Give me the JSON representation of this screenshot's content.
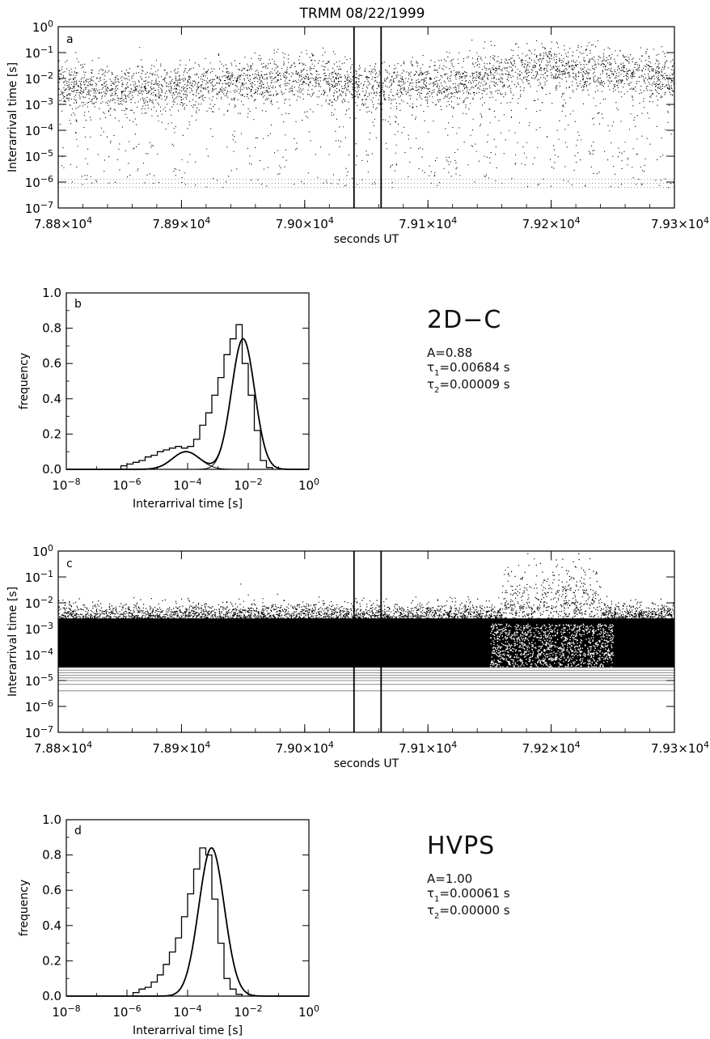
{
  "figure": {
    "title": "TRMM 08/22/1999",
    "panel_b_text": {
      "instrument": "2D−C",
      "A": "A=0.88",
      "tau1_sym": "τ",
      "tau1_sub": "1",
      "tau1_val": "=0.00684 s",
      "tau2_sym": "τ",
      "tau2_sub": "2",
      "tau2_val": "=0.00009 s"
    },
    "panel_d_text": {
      "instrument": "HVPS",
      "A": "A=1.00",
      "tau1_sym": "τ",
      "tau1_sub": "1",
      "tau1_val": "=0.00061 s",
      "tau2_sym": "τ",
      "tau2_sub": "2",
      "tau2_val": "=0.00000 s"
    }
  },
  "chart_data": [
    {
      "panel": "a",
      "type": "scatter",
      "title": "TRMM 08/22/1999",
      "xlabel": "seconds UT",
      "ylabel": "Interarrival time [s]",
      "xlim": [
        78800,
        79300
      ],
      "ylim": [
        1e-07,
        1
      ],
      "yscale": "log",
      "x_ticks": [
        "7.88×10^4",
        "7.89×10^4",
        "7.90×10^4",
        "7.91×10^4",
        "7.92×10^4",
        "7.93×10^4"
      ],
      "y_ticks": [
        "10^0",
        "10^-1",
        "10^-2",
        "10^-3",
        "10^-4",
        "10^-5",
        "10^-6",
        "10^-7"
      ],
      "vertical_lines": [
        79040,
        79062
      ],
      "density_description": "dense band centered near 10^-2 s, sparse scatter down to ~5x10^-7 s",
      "band_center_log10": [
        -2.2,
        -2.4,
        -2.3,
        -2.1,
        -1.9,
        -2.3,
        -2.2,
        -1.8,
        -1.6,
        -1.7,
        -2.0
      ],
      "band_x": [
        78800,
        78850,
        78900,
        78950,
        79000,
        79050,
        79100,
        79150,
        79200,
        79250,
        79300
      ]
    },
    {
      "panel": "b",
      "type": "histogram",
      "xlabel": "Interarrival time [s]",
      "ylabel": "frequency",
      "xscale": "log",
      "xlim": [
        1e-08,
        1
      ],
      "ylim": [
        0,
        1.0
      ],
      "x_ticks": [
        "10^-8",
        "10^-6",
        "10^-4",
        "10^-2",
        "10^0"
      ],
      "y_ticks": [
        "0.0",
        "0.2",
        "0.4",
        "0.6",
        "0.8",
        "1.0"
      ],
      "bin_log10_edges": [
        -6.2,
        -6.0,
        -5.8,
        -5.6,
        -5.4,
        -5.2,
        -5.0,
        -4.8,
        -4.6,
        -4.4,
        -4.2,
        -4.0,
        -3.8,
        -3.6,
        -3.4,
        -3.2,
        -3.0,
        -2.8,
        -2.6,
        -2.4,
        -2.2,
        -2.0,
        -1.8,
        -1.6,
        -1.4,
        -1.2
      ],
      "bin_values": [
        0.02,
        0.03,
        0.04,
        0.05,
        0.07,
        0.08,
        0.1,
        0.11,
        0.12,
        0.13,
        0.12,
        0.13,
        0.17,
        0.25,
        0.32,
        0.42,
        0.52,
        0.65,
        0.74,
        0.82,
        0.6,
        0.42,
        0.22,
        0.05,
        0.01
      ],
      "fit_total_peak": {
        "log10_x": -2.17,
        "y": 0.74
      },
      "component_1": {
        "A": 0.88,
        "tau": 0.00684,
        "log10_center": -2.17,
        "peak": 0.74
      },
      "component_2": {
        "A": 0.12,
        "tau": 9e-05,
        "log10_center": -4.05,
        "peak": 0.1
      }
    },
    {
      "panel": "c",
      "type": "scatter",
      "xlabel": "seconds UT",
      "ylabel": "Interarrival time [s]",
      "xlim": [
        78800,
        79300
      ],
      "ylim": [
        1e-07,
        1
      ],
      "yscale": "log",
      "x_ticks": [
        "7.88×10^4",
        "7.89×10^4",
        "7.90×10^4",
        "7.91×10^4",
        "7.92×10^4",
        "7.93×10^4"
      ],
      "y_ticks": [
        "10^0",
        "10^-1",
        "10^-2",
        "10^-3",
        "10^-4",
        "10^-5",
        "10^-6",
        "10^-7"
      ],
      "vertical_lines": [
        79040,
        79062
      ],
      "density_description": "solid band from ~3x10^-5 to ~3x10^-3 s with horizontal quantization lines below",
      "band_top_log10": -2.6,
      "band_bottom_log10": -4.5,
      "quantization_lines_log10": [
        -4.5,
        -4.6,
        -4.7,
        -4.8,
        -4.9,
        -5.0,
        -5.15,
        -5.4
      ]
    },
    {
      "panel": "d",
      "type": "histogram",
      "xlabel": "Interarrival time [s]",
      "ylabel": "frequency",
      "xscale": "log",
      "xlim": [
        1e-08,
        1
      ],
      "ylim": [
        0,
        1.0
      ],
      "x_ticks": [
        "10^-8",
        "10^-6",
        "10^-4",
        "10^-2",
        "10^0"
      ],
      "y_ticks": [
        "0.0",
        "0.2",
        "0.4",
        "0.6",
        "0.8",
        "1.0"
      ],
      "bin_log10_edges": [
        -5.8,
        -5.6,
        -5.4,
        -5.2,
        -5.0,
        -4.8,
        -4.6,
        -4.4,
        -4.2,
        -4.0,
        -3.8,
        -3.6,
        -3.4,
        -3.2,
        -3.0,
        -2.8,
        -2.6,
        -2.4,
        -2.2
      ],
      "bin_values": [
        0.02,
        0.04,
        0.05,
        0.08,
        0.12,
        0.18,
        0.25,
        0.33,
        0.45,
        0.58,
        0.72,
        0.84,
        0.8,
        0.55,
        0.3,
        0.1,
        0.04,
        0.01
      ],
      "fit_total_peak": {
        "log10_x": -3.21,
        "y": 0.84
      },
      "component_1": {
        "A": 1.0,
        "tau": 0.00061,
        "log10_center": -3.21,
        "peak": 0.84
      }
    }
  ]
}
